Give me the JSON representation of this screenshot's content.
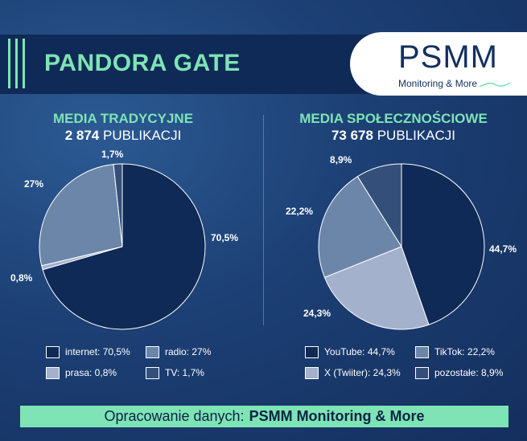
{
  "header": {
    "title": "PANDORA GATE",
    "logo_main": "PSMM",
    "logo_sub": "Monitoring & More"
  },
  "colors": {
    "accent": "#7ee4b5",
    "band": "#0f2a56",
    "navy_dark": "#0f2a56",
    "slate_blue": "#6b86a8",
    "lavender": "#a4b1cc",
    "slate_dark": "#34507a"
  },
  "chart_data": [
    {
      "type": "pie",
      "title": "MEDIA TRADYCYJNE",
      "count": "2 874",
      "count_unit": "PUBLIKACJI",
      "start_angle_deg": 0,
      "direction": "clockwise",
      "slices": [
        {
          "label": "internet",
          "legend": "internet: 70,5%",
          "value": 70.5,
          "value_label": "70,5%",
          "color": "#0f2a56"
        },
        {
          "label": "prasa",
          "legend": "prasa: 0,8%",
          "value": 0.8,
          "value_label": "0,8%",
          "color": "#a4b1cc"
        },
        {
          "label": "radio",
          "legend": "radio: 27%",
          "value": 27,
          "value_label": "27%",
          "color": "#6b86a8"
        },
        {
          "label": "TV",
          "legend": "TV: 1,7%",
          "value": 1.7,
          "value_label": "1,7%",
          "color": "#34507a"
        }
      ]
    },
    {
      "type": "pie",
      "title": "MEDIA SPOŁECZNOŚCIOWE",
      "count": "73 678",
      "count_unit": "PUBLIKACJI",
      "start_angle_deg": 0,
      "direction": "clockwise",
      "slices": [
        {
          "label": "YouTube",
          "legend": "YouTube: 44,7%",
          "value": 44.7,
          "value_label": "44,7%",
          "color": "#0f2a56"
        },
        {
          "label": "X (Twiiter)",
          "legend": "X (Twiiter): 24,3%",
          "value": 24.3,
          "value_label": "24,3%",
          "color": "#a4b1cc"
        },
        {
          "label": "TikTok",
          "legend": "TikTok: 22,2%",
          "value": 22.2,
          "value_label": "22,2%",
          "color": "#6b86a8"
        },
        {
          "label": "pozostałe",
          "legend": "pozostałe: 8,9%",
          "value": 8.9,
          "value_label": "8,9%",
          "color": "#34507a"
        }
      ]
    }
  ],
  "footer": {
    "prefix": "Opracowanie danych:",
    "brand": "PSMM Monitoring & More"
  }
}
